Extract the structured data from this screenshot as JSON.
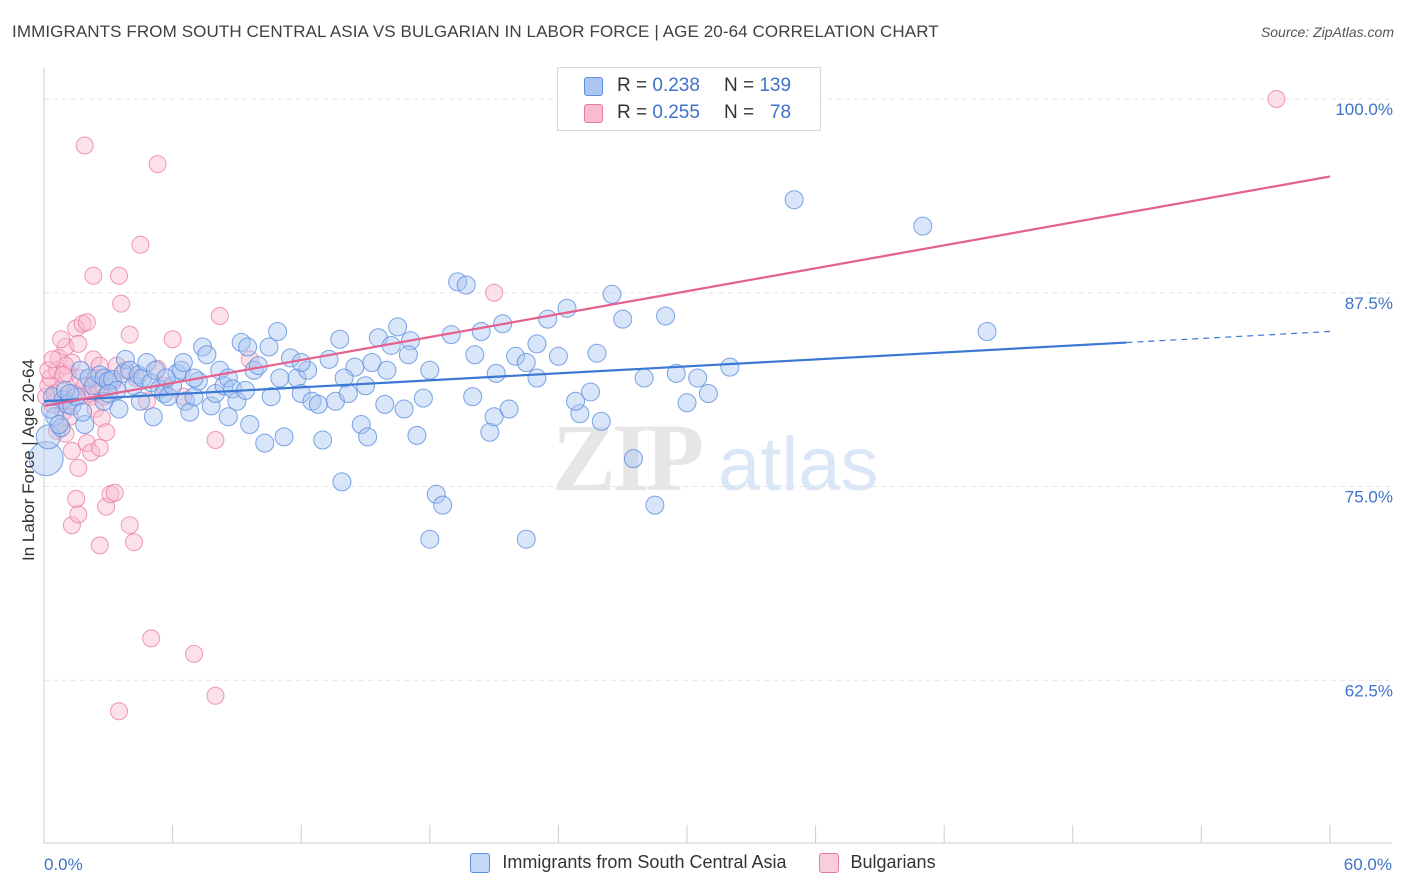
{
  "title": "IMMIGRANTS FROM SOUTH CENTRAL ASIA VS BULGARIAN IN LABOR FORCE | AGE 20-64 CORRELATION CHART",
  "source": "Source: ZipAtlas.com",
  "watermark": {
    "zip": "ZIP",
    "atlas": "atlas"
  },
  "legend": {
    "r_label": "R =",
    "n_label": "N =",
    "series": [
      {
        "name": "Immigrants from South Central Asia",
        "r": "0.238",
        "n": "139",
        "fill": "#aac6f0",
        "stroke": "#5b8fe0"
      },
      {
        "name": "Bulgarians",
        "r": "0.255",
        "n": "78",
        "fill": "#f8bcd0",
        "stroke": "#e8799f"
      }
    ]
  },
  "chart_data": {
    "type": "scatter",
    "title": "IMMIGRANTS FROM SOUTH CENTRAL ASIA VS BULGARIAN IN LABOR FORCE | AGE 20-64 CORRELATION CHART",
    "xlabel": "",
    "ylabel": "In Labor Force | Age 20-64",
    "xlim": [
      0,
      60
    ],
    "ylim": [
      52,
      102
    ],
    "x_tick_labels": [
      "0.0%",
      "60.0%"
    ],
    "y_ticks": [
      62.5,
      75.0,
      87.5,
      100.0
    ],
    "y_tick_labels": [
      "62.5%",
      "75.0%",
      "87.5%",
      "100.0%"
    ],
    "grid": true,
    "series": [
      {
        "name": "Immigrants from South Central Asia",
        "color": "#5b8fe0",
        "trend": {
          "x0": 0,
          "y0": 80.5,
          "x1": 60,
          "y1": 85.0,
          "solid_until": 50.5
        },
        "points": [
          [
            0.1,
            76.8
          ],
          [
            0.2,
            78.2
          ],
          [
            0.4,
            80.8
          ],
          [
            0.5,
            79.5
          ],
          [
            0.8,
            78.8
          ],
          [
            0.9,
            80.6
          ],
          [
            1.0,
            81.2
          ],
          [
            1.1,
            80.3
          ],
          [
            1.3,
            80.2
          ],
          [
            1.5,
            80.8
          ],
          [
            1.7,
            82.5
          ],
          [
            1.9,
            79.0
          ],
          [
            2.1,
            82.0
          ],
          [
            2.3,
            81.5
          ],
          [
            2.6,
            82.2
          ],
          [
            2.8,
            82.0
          ],
          [
            3.0,
            81.8
          ],
          [
            3.2,
            81.9
          ],
          [
            3.4,
            81.2
          ],
          [
            3.7,
            82.3
          ],
          [
            3.8,
            83.2
          ],
          [
            4.0,
            82.5
          ],
          [
            4.2,
            81.5
          ],
          [
            4.4,
            82.2
          ],
          [
            4.6,
            82.0
          ],
          [
            4.8,
            83.0
          ],
          [
            5.0,
            81.7
          ],
          [
            5.2,
            82.5
          ],
          [
            5.4,
            81.3
          ],
          [
            5.6,
            81.0
          ],
          [
            5.8,
            80.8
          ],
          [
            6.0,
            81.5
          ],
          [
            6.2,
            82.3
          ],
          [
            6.4,
            82.5
          ],
          [
            6.6,
            80.5
          ],
          [
            6.8,
            79.8
          ],
          [
            7.0,
            80.8
          ],
          [
            7.2,
            81.8
          ],
          [
            7.4,
            84.0
          ],
          [
            7.6,
            83.5
          ],
          [
            7.8,
            80.2
          ],
          [
            8.0,
            81.0
          ],
          [
            8.2,
            82.5
          ],
          [
            8.4,
            81.5
          ],
          [
            8.6,
            82.0
          ],
          [
            8.8,
            81.3
          ],
          [
            9.0,
            80.5
          ],
          [
            9.2,
            84.3
          ],
          [
            9.4,
            81.2
          ],
          [
            9.6,
            79.0
          ],
          [
            9.8,
            82.5
          ],
          [
            10.0,
            82.8
          ],
          [
            10.3,
            77.8
          ],
          [
            10.6,
            80.8
          ],
          [
            10.9,
            85.0
          ],
          [
            11.2,
            78.2
          ],
          [
            11.5,
            83.3
          ],
          [
            11.8,
            82.0
          ],
          [
            12.0,
            81.0
          ],
          [
            12.3,
            82.5
          ],
          [
            12.5,
            80.5
          ],
          [
            12.8,
            80.3
          ],
          [
            13.0,
            78.0
          ],
          [
            13.3,
            83.2
          ],
          [
            13.6,
            80.5
          ],
          [
            13.9,
            75.3
          ],
          [
            14.2,
            81.0
          ],
          [
            14.5,
            82.7
          ],
          [
            14.8,
            79.0
          ],
          [
            15.1,
            78.2
          ],
          [
            15.3,
            83.0
          ],
          [
            15.6,
            84.6
          ],
          [
            15.9,
            80.3
          ],
          [
            16.2,
            84.1
          ],
          [
            16.5,
            85.3
          ],
          [
            16.8,
            80.0
          ],
          [
            17.1,
            84.4
          ],
          [
            17.4,
            78.3
          ],
          [
            17.7,
            80.7
          ],
          [
            18.0,
            71.6
          ],
          [
            18.3,
            74.5
          ],
          [
            18.6,
            73.8
          ],
          [
            19.0,
            84.8
          ],
          [
            19.3,
            88.2
          ],
          [
            19.7,
            88.0
          ],
          [
            20.1,
            83.5
          ],
          [
            20.4,
            85.0
          ],
          [
            20.8,
            78.5
          ],
          [
            21.1,
            82.3
          ],
          [
            21.4,
            85.5
          ],
          [
            21.7,
            80.0
          ],
          [
            22.0,
            83.4
          ],
          [
            22.5,
            71.6
          ],
          [
            23.0,
            82.0
          ],
          [
            23.5,
            85.8
          ],
          [
            24.0,
            83.4
          ],
          [
            24.4,
            86.5
          ],
          [
            25.0,
            79.7
          ],
          [
            25.5,
            81.1
          ],
          [
            25.8,
            83.6
          ],
          [
            26.5,
            87.4
          ],
          [
            27.0,
            85.8
          ],
          [
            27.5,
            76.8
          ],
          [
            28.0,
            82.0
          ],
          [
            28.5,
            73.8
          ],
          [
            29.0,
            86.0
          ],
          [
            29.5,
            82.3
          ],
          [
            30.0,
            80.4
          ],
          [
            30.5,
            82.0
          ],
          [
            31.0,
            81.0
          ],
          [
            32.0,
            82.7
          ],
          [
            23.0,
            84.2
          ],
          [
            24.8,
            80.5
          ],
          [
            14.0,
            82.0
          ],
          [
            12.0,
            83.0
          ],
          [
            20.0,
            80.8
          ],
          [
            16.0,
            82.5
          ],
          [
            6.5,
            83.0
          ],
          [
            4.5,
            80.5
          ],
          [
            2.8,
            80.5
          ],
          [
            0.7,
            79.0
          ],
          [
            1.2,
            81.0
          ],
          [
            3.5,
            80.0
          ],
          [
            5.1,
            79.5
          ],
          [
            10.5,
            84.0
          ],
          [
            11.0,
            82.0
          ],
          [
            13.8,
            84.5
          ],
          [
            8.6,
            79.5
          ],
          [
            9.5,
            84.0
          ],
          [
            18.0,
            82.5
          ],
          [
            21.0,
            79.5
          ],
          [
            26.0,
            79.2
          ],
          [
            22.5,
            83.0
          ],
          [
            17.0,
            83.5
          ],
          [
            15.0,
            81.5
          ],
          [
            7.0,
            82.0
          ],
          [
            5.7,
            82.0
          ],
          [
            3.0,
            81.0
          ],
          [
            1.8,
            79.8
          ],
          [
            0.3,
            80.0
          ],
          [
            35.0,
            93.5
          ],
          [
            41.0,
            91.8
          ],
          [
            44.0,
            85.0
          ]
        ]
      },
      {
        "name": "Bulgarians",
        "color": "#e8799f",
        "trend": {
          "x0": 0,
          "y0": 80.2,
          "x1": 60,
          "y1": 95.0
        },
        "points": [
          [
            0.1,
            80.8
          ],
          [
            0.2,
            81.5
          ],
          [
            0.3,
            82.0
          ],
          [
            0.4,
            80.3
          ],
          [
            0.5,
            81.0
          ],
          [
            0.6,
            82.5
          ],
          [
            0.7,
            83.3
          ],
          [
            0.8,
            81.3
          ],
          [
            0.9,
            79.8
          ],
          [
            1.0,
            84.0
          ],
          [
            1.1,
            82.3
          ],
          [
            1.2,
            80.5
          ],
          [
            1.3,
            83.0
          ],
          [
            1.4,
            81.0
          ],
          [
            1.5,
            85.2
          ],
          [
            1.6,
            84.2
          ],
          [
            1.7,
            82.0
          ],
          [
            1.8,
            85.5
          ],
          [
            1.9,
            81.5
          ],
          [
            2.0,
            85.6
          ],
          [
            2.1,
            81.0
          ],
          [
            2.2,
            80.8
          ],
          [
            2.3,
            83.2
          ],
          [
            2.4,
            80.0
          ],
          [
            2.5,
            81.5
          ],
          [
            2.6,
            82.8
          ],
          [
            2.7,
            79.4
          ],
          [
            1.3,
            72.5
          ],
          [
            1.5,
            74.2
          ],
          [
            1.6,
            73.2
          ],
          [
            2.0,
            77.8
          ],
          [
            2.2,
            77.2
          ],
          [
            2.6,
            77.5
          ],
          [
            2.9,
            73.7
          ],
          [
            3.1,
            74.5
          ],
          [
            3.3,
            74.6
          ],
          [
            2.6,
            71.2
          ],
          [
            4.0,
            72.5
          ],
          [
            4.2,
            71.4
          ],
          [
            8.0,
            78.0
          ],
          [
            1.9,
            97.0
          ],
          [
            5.3,
            95.8
          ],
          [
            4.5,
            90.6
          ],
          [
            2.3,
            88.6
          ],
          [
            3.5,
            88.6
          ],
          [
            3.6,
            86.8
          ],
          [
            4.0,
            84.8
          ],
          [
            3.4,
            82.8
          ],
          [
            1.0,
            78.4
          ],
          [
            0.6,
            78.6
          ],
          [
            1.3,
            77.3
          ],
          [
            1.6,
            76.2
          ],
          [
            2.9,
            78.5
          ],
          [
            6.0,
            84.5
          ],
          [
            8.2,
            86.0
          ],
          [
            9.6,
            83.2
          ],
          [
            21.0,
            87.5
          ],
          [
            57.5,
            100.0
          ],
          [
            5.0,
            65.2
          ],
          [
            7.0,
            64.2
          ],
          [
            3.5,
            60.5
          ],
          [
            8.0,
            61.5
          ],
          [
            0.8,
            84.5
          ],
          [
            1.0,
            82.8
          ],
          [
            1.7,
            80.8
          ],
          [
            2.4,
            82.0
          ],
          [
            3.2,
            81.7
          ],
          [
            4.3,
            82.0
          ],
          [
            5.6,
            81.5
          ],
          [
            6.5,
            80.8
          ],
          [
            0.2,
            82.5
          ],
          [
            0.4,
            83.2
          ],
          [
            0.9,
            82.2
          ],
          [
            1.2,
            79.5
          ],
          [
            2.8,
            80.8
          ],
          [
            3.8,
            82.5
          ],
          [
            4.8,
            80.5
          ],
          [
            5.3,
            82.6
          ]
        ]
      }
    ]
  }
}
